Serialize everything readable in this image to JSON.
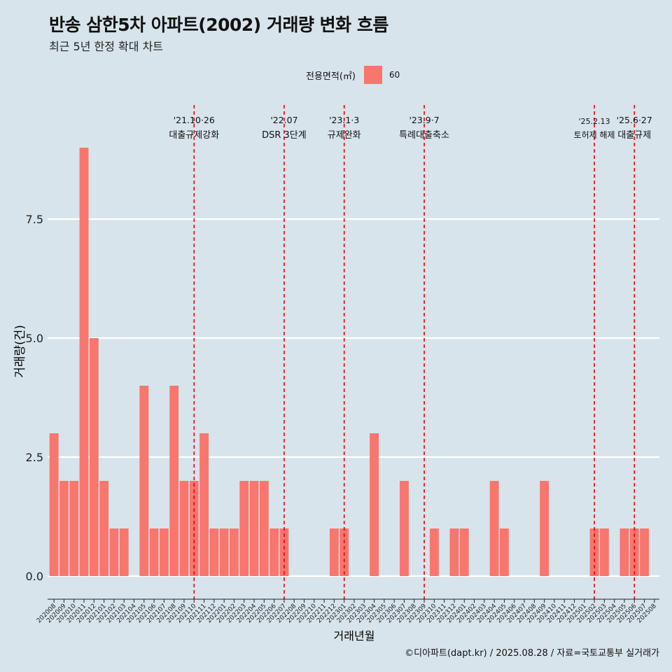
{
  "title": "반송 삼한5차 아파트(2002) 거래량 변화 흐름",
  "subtitle": "최근 5년 한정 확대 차트",
  "caption": "©디아파트(dapt.kr) / 2025.08.28 / 자료=국토교통부 실거래가",
  "legend": {
    "title": "전용면적(㎡)",
    "label": "60",
    "color": "#f8766d"
  },
  "colors": {
    "background": "#d7e4ec",
    "bar": "#f8766d",
    "gridline": "#ffffff",
    "event_line": "#e8000b"
  },
  "chart_data": {
    "type": "bar",
    "xlabel": "거래년월",
    "ylabel": "거래량(건)",
    "ylim": [
      0,
      9
    ],
    "yticks": [
      "0.0",
      "2.5",
      "5.0",
      "7.5"
    ],
    "ytick_values": [
      0,
      2.5,
      5,
      7.5
    ],
    "grid": "horizontal",
    "categories": [
      "202008",
      "202009",
      "202010",
      "202011",
      "202012",
      "202101",
      "202102",
      "202103",
      "202104",
      "202105",
      "202106",
      "202107",
      "202108",
      "202109",
      "202110",
      "202111",
      "202112",
      "202201",
      "202202",
      "202203",
      "202204",
      "202205",
      "202206",
      "202207",
      "202208",
      "202209",
      "202210",
      "202211",
      "202212",
      "202301",
      "202302",
      "202303",
      "202304",
      "202305",
      "202306",
      "202307",
      "202308",
      "202309",
      "202310",
      "202311",
      "202312",
      "202401",
      "202402",
      "202403",
      "202404",
      "202405",
      "202406",
      "202407",
      "202408",
      "202409",
      "202410",
      "202411",
      "202412",
      "202501",
      "202502",
      "202503",
      "202504",
      "202505",
      "202506",
      "202507",
      "202508"
    ],
    "series": [
      {
        "name": "60",
        "values": [
          3,
          2,
          2,
          9,
          5,
          2,
          1,
          1,
          0,
          4,
          1,
          1,
          4,
          2,
          2,
          3,
          1,
          1,
          1,
          2,
          2,
          2,
          1,
          1,
          0,
          0,
          0,
          0,
          1,
          1,
          0,
          0,
          3,
          0,
          0,
          2,
          0,
          0,
          1,
          0,
          1,
          1,
          0,
          0,
          2,
          1,
          0,
          0,
          0,
          2,
          0,
          0,
          0,
          0,
          1,
          1,
          0,
          1,
          1,
          1,
          0
        ]
      }
    ],
    "events": [
      {
        "date_label": "'21.10·26",
        "label": "대출규제강화",
        "month": "202110"
      },
      {
        "date_label": "'22.07",
        "label": "DSR 3단계",
        "month": "202207"
      },
      {
        "date_label": "'23.1·3",
        "label": "규제완화",
        "month": "202301"
      },
      {
        "date_label": "'23.9·7",
        "label": "특례대출축소",
        "month": "202309"
      },
      {
        "date_label": "'25.2.13",
        "label": "토허제 해제",
        "month": "202502"
      },
      {
        "date_label": "'25.6·27",
        "label": "대출규제",
        "month": "202506"
      }
    ]
  }
}
